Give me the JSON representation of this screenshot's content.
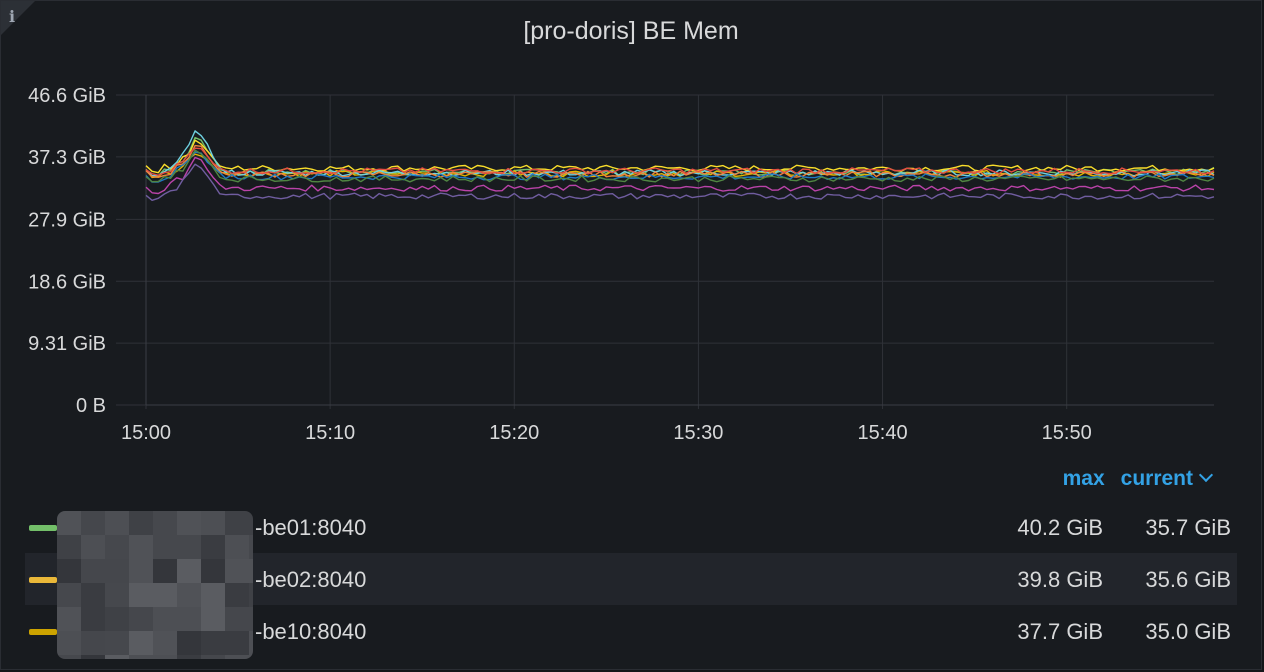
{
  "panel": {
    "title": "[pro-doris] BE Mem",
    "info_icon": "info-icon"
  },
  "chart_data": {
    "type": "line",
    "title": "[pro-doris] BE Mem",
    "y_ticks": [
      "0 B",
      "9.31 GiB",
      "18.6 GiB",
      "27.9 GiB",
      "37.3 GiB",
      "46.6 GiB"
    ],
    "y_tick_values": [
      0,
      9.31,
      18.6,
      27.9,
      37.3,
      46.6
    ],
    "ylim": [
      0,
      46.6
    ],
    "x_ticks": [
      "15:00",
      "15:10",
      "15:20",
      "15:30",
      "15:40",
      "15:50"
    ],
    "x_tick_minutes": [
      0,
      10,
      20,
      30,
      40,
      50
    ],
    "xlim_minutes": [
      0,
      58
    ],
    "grid": true,
    "series": [
      {
        "color": "#73bf69",
        "base": 35.0,
        "peak": 40.2,
        "end": 35.7
      },
      {
        "color": "#fade2a",
        "base": 35.6,
        "peak": 39.8,
        "end": 35.6
      },
      {
        "color": "#e0b400",
        "base": 34.8,
        "peak": 37.7,
        "end": 35.0
      },
      {
        "color": "#6ed0e0",
        "base": 34.9,
        "peak": 41.2,
        "end": 34.6
      },
      {
        "color": "#ef843c",
        "base": 34.7,
        "peak": 39.0,
        "end": 34.5
      },
      {
        "color": "#e24d42",
        "base": 35.2,
        "peak": 38.6,
        "end": 35.2
      },
      {
        "color": "#1f78c1",
        "base": 34.3,
        "peak": 38.0,
        "end": 34.2
      },
      {
        "color": "#ba43a9",
        "base": 32.6,
        "peak": 37.2,
        "end": 32.4
      },
      {
        "color": "#705da0",
        "base": 31.4,
        "peak": 36.2,
        "end": 31.3
      },
      {
        "color": "#508642",
        "base": 34.0,
        "peak": 38.3,
        "end": 34.1
      }
    ]
  },
  "legend": {
    "max_label": "max",
    "current_label": "current",
    "rows": [
      {
        "name": "-be01:8040",
        "max": "40.2 GiB",
        "current": "35.7 GiB",
        "color": "#73bf69"
      },
      {
        "name": "-be02:8040",
        "max": "39.8 GiB",
        "current": "35.6 GiB",
        "color": "#eab839"
      },
      {
        "name": "-be10:8040",
        "max": "37.7 GiB",
        "current": "35.0 GiB",
        "color": "#cca300"
      }
    ]
  }
}
